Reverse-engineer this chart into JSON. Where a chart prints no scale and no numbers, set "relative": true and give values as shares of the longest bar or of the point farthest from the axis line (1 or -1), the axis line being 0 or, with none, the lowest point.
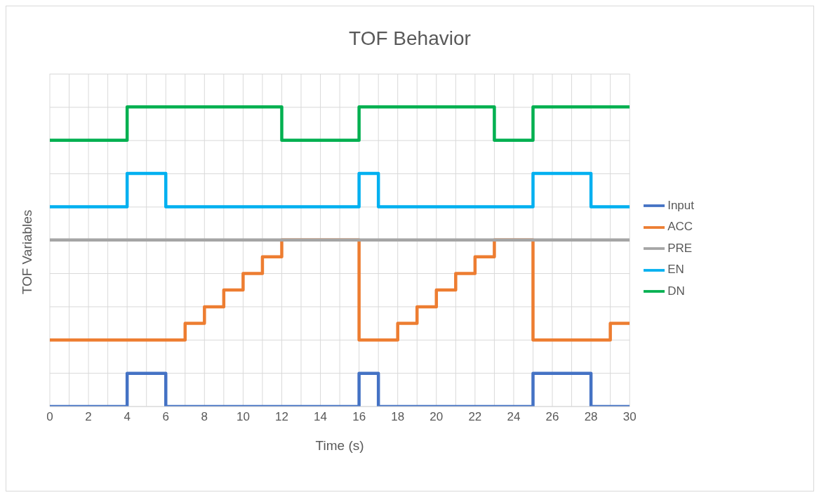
{
  "chart_data": {
    "type": "step",
    "title": "TOF Behavior",
    "xlabel": "Time (s)",
    "ylabel": "TOF Variables",
    "relative": true,
    "grid": true,
    "legend": "right",
    "line_style": "solid",
    "marker": "none",
    "xlim": [
      0,
      30
    ],
    "xticks": [
      0,
      {
        "value": 1,
        "label": null
      },
      2,
      {
        "value": 3,
        "label": null
      },
      4,
      {
        "value": 5,
        "label": null
      },
      6,
      {
        "value": 7,
        "label": null
      },
      8,
      {
        "value": 9,
        "label": null
      },
      10,
      {
        "value": 11,
        "label": null
      },
      12,
      {
        "value": 13,
        "label": null
      },
      14,
      {
        "value": 15,
        "label": null
      },
      16,
      {
        "value": 17,
        "label": null
      },
      18,
      {
        "value": 19,
        "label": null
      },
      20,
      {
        "value": 21,
        "label": null
      },
      22,
      {
        "value": 23,
        "label": null
      },
      24,
      {
        "value": 25,
        "label": null
      },
      26,
      {
        "value": 27,
        "label": null
      },
      28,
      {
        "value": 29,
        "label": null
      },
      30
    ],
    "series": [
      {
        "name": "Input",
        "color": "#4472c4",
        "x": [
          0,
          4,
          6,
          16,
          17,
          25,
          28,
          30
        ],
        "values": [
          0,
          0.111,
          0,
          0.111,
          0,
          0.111,
          0,
          0
        ]
      },
      {
        "name": "ACC",
        "color": "#ed7d31",
        "x": [
          0,
          7,
          8,
          9,
          10,
          11,
          12,
          16,
          18,
          19,
          20,
          21,
          22,
          23,
          25,
          29,
          30
        ],
        "values": [
          0.222,
          0.278,
          0.333,
          0.389,
          0.444,
          0.5,
          0.556,
          0.222,
          0.278,
          0.333,
          0.389,
          0.444,
          0.5,
          0.556,
          0.222,
          0.278,
          0.278
        ]
      },
      {
        "name": "PRE",
        "color": "#a5a5a5",
        "x": [
          0,
          30
        ],
        "values": [
          0.556,
          0.556
        ]
      },
      {
        "name": "EN",
        "color": "#00b0f0",
        "x": [
          0,
          4,
          6,
          16,
          17,
          25,
          28,
          30
        ],
        "values": [
          0.667,
          0.778,
          0.667,
          0.778,
          0.667,
          0.778,
          0.667,
          0.667
        ]
      },
      {
        "name": "DN",
        "color": "#00b050",
        "x": [
          0,
          4,
          12,
          16,
          23,
          25,
          30
        ],
        "values": [
          0.889,
          1,
          0.889,
          1,
          0.889,
          1,
          1
        ]
      }
    ]
  }
}
